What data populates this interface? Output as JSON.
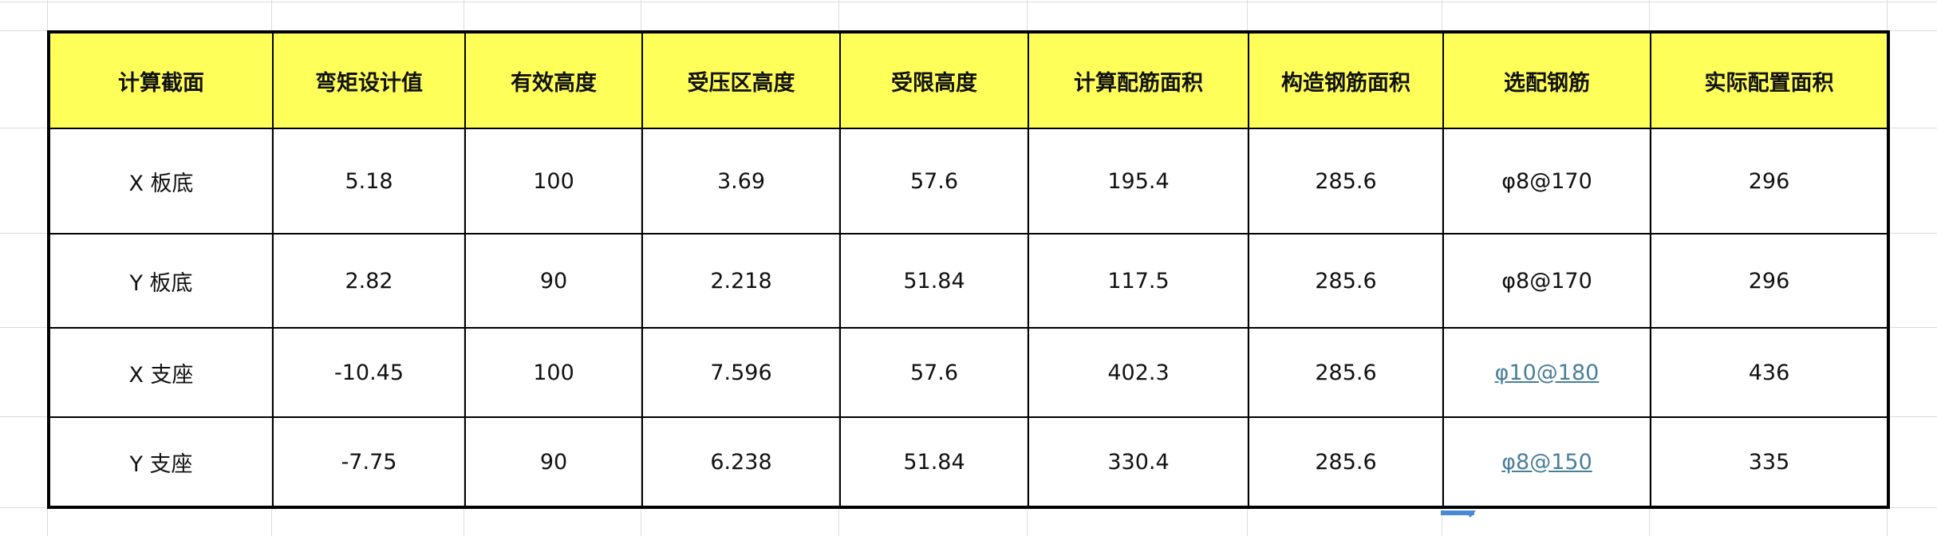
{
  "table": {
    "headers": [
      "计算截面",
      "弯矩设计值",
      "有效高度",
      "受压区高度",
      "受限高度",
      "计算配筋面积",
      "构造钢筋面积",
      "选配钢筋",
      "实际配置面积"
    ],
    "rows": [
      [
        "X 板底",
        "5.18",
        "100",
        "3.69",
        "57.6",
        "195.4",
        "285.6",
        "φ8@170",
        "296"
      ],
      [
        "Y 板底",
        "2.82",
        "90",
        "2.218",
        "51.84",
        "117.5",
        "285.6",
        "φ8@170",
        "296"
      ],
      [
        "X 支座",
        "-10.45",
        "100",
        "7.596",
        "57.6",
        "402.3",
        "285.6",
        "φ10@180",
        "436"
      ],
      [
        "Y 支座",
        "-7.75",
        "90",
        "6.238",
        "51.84",
        "330.4",
        "285.6",
        "φ8@150",
        "335"
      ]
    ]
  },
  "colors": {
    "header_bg": "#ffff5a",
    "link": "#4a7f9a",
    "selection": "#4a8ad4"
  }
}
